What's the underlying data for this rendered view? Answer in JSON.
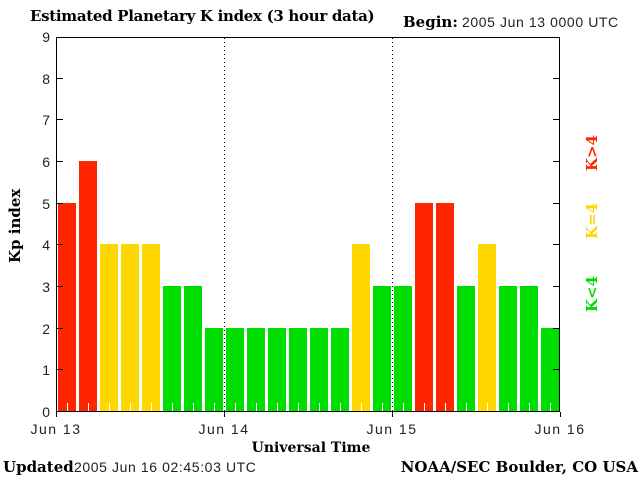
{
  "header": {
    "title": "Estimated Planetary K index (3 hour data)",
    "begin_label": "Begin:",
    "begin_value": "2005 Jun 13 0000 UTC"
  },
  "axes": {
    "ylabel": "Kp index",
    "xlabel": "Universal Time",
    "yticks": [
      0,
      1,
      2,
      3,
      4,
      5,
      6,
      7,
      8,
      9
    ],
    "xticklabels": [
      "Jun 13",
      "Jun 14",
      "Jun 15",
      "Jun 16"
    ]
  },
  "legend": [
    {
      "label": "K>4",
      "color": "#ff2500"
    },
    {
      "label": "K=4",
      "color": "#ffd600"
    },
    {
      "label": "K<4",
      "color": "#00dd00"
    }
  ],
  "footer": {
    "updated_label": "Updated",
    "updated_value": "2005 Jun 16 02:45:03 UTC",
    "source": "NOAA/SEC Boulder, CO USA"
  },
  "chart_data": {
    "type": "bar",
    "title": "Estimated Planetary K index (3 hour data)",
    "xlabel": "Universal Time",
    "ylabel": "Kp index",
    "ylim": [
      0,
      9
    ],
    "yticks": [
      0,
      1,
      2,
      3,
      4,
      5,
      6,
      7,
      8,
      9
    ],
    "days": [
      "Jun 13",
      "Jun 14",
      "Jun 15",
      "Jun 16"
    ],
    "bars_per_day": 8,
    "interval_hours": 3,
    "values": [
      5,
      6,
      4,
      4,
      4,
      3,
      3,
      2,
      2,
      2,
      2,
      2,
      2,
      2,
      4,
      3,
      3,
      5,
      5,
      3,
      4,
      3,
      3,
      2
    ],
    "colors": {
      "high": "#ff2500",
      "mid": "#ffd600",
      "low": "#00dd00"
    },
    "color_rule": "kp>4 high(red), kp=4 mid(yellow), kp<4 low(green)",
    "grid": "dotted vertical lines at day boundaries",
    "legend_position": "right",
    "begin": "2005 Jun 13 0000 UTC"
  }
}
